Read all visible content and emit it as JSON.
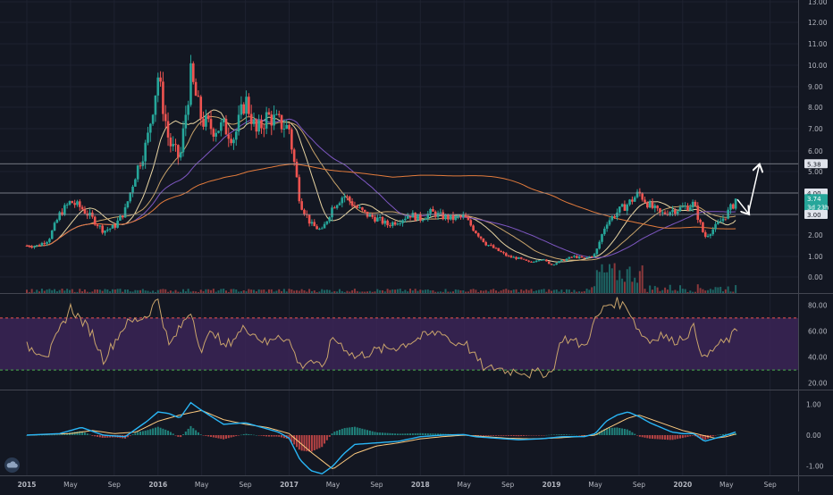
{
  "colors": {
    "background": "#131722",
    "grid": "#1e2230",
    "pane_border": "#434651",
    "axis_text": "#b2b5be",
    "up": "#26a69a",
    "down": "#ef5350",
    "ma_fast": "#e8d4a2",
    "ma_mid": "#c9a46b",
    "ma_slow": "#7e57c2",
    "ma_long": "#e27b3c",
    "rsi_line": "#c9a46b",
    "rsi_band": "#3b2456",
    "rsi_upper": "#ef5350",
    "rsi_lower": "#4caf50",
    "macd_line": "#29b6f6",
    "signal_line": "#ffcc80",
    "label_fill": "#e0e3eb",
    "label_text": "#131722",
    "price_label_fill": "#26a69a",
    "arrow": "#ffffff"
  },
  "icons": {
    "logo": "tradingview-cloud-icon"
  },
  "chart_data": [
    {
      "type": "candlestick",
      "name": "price",
      "x_ticks": [
        "2015",
        "May",
        "Sep",
        "2016",
        "May",
        "Sep",
        "2017",
        "May",
        "Sep",
        "2018",
        "May",
        "Sep",
        "2019",
        "May",
        "Sep",
        "2020",
        "May",
        "Sep"
      ],
      "x_tick_dates": [
        "2015-01",
        "2015-05",
        "2015-09",
        "2016-01",
        "2016-05",
        "2016-09",
        "2017-01",
        "2017-05",
        "2017-09",
        "2018-01",
        "2018-05",
        "2018-09",
        "2019-01",
        "2019-05",
        "2019-09",
        "2020-01",
        "2020-05",
        "2020-09"
      ],
      "bold_ticks": [
        "2015",
        "2016",
        "2017",
        "2018",
        "2019",
        "2020"
      ],
      "y_ticks": [
        "0.00",
        "1.00",
        "2.00",
        "3.00",
        "4.00",
        "5.00",
        "6.00",
        "7.00",
        "8.00",
        "9.00",
        "10.00",
        "11.00",
        "12.00",
        "13.00"
      ],
      "y_scale": "log",
      "ylim": [
        0,
        13
      ],
      "horizontal_levels": [
        3.0,
        4.0,
        5.38
      ],
      "price_labels": [
        {
          "value": 5.38,
          "text": "5.38",
          "style": "light"
        },
        {
          "value": 4.0,
          "text": "4.00",
          "style": "light"
        },
        {
          "value": 3.74,
          "text": "3.74",
          "style": "accent"
        },
        {
          "value": 3.35,
          "text": "3d 23h",
          "style": "accent"
        },
        {
          "value": 3.0,
          "text": "3.00",
          "style": "light"
        }
      ],
      "close_path": [
        [
          "2015-01",
          1.5
        ],
        [
          "2015-02",
          1.5
        ],
        [
          "2015-03",
          1.8
        ],
        [
          "2015-04",
          3.0
        ],
        [
          "2015-05",
          3.6
        ],
        [
          "2015-06",
          3.3
        ],
        [
          "2015-07",
          2.8
        ],
        [
          "2015-08",
          2.2
        ],
        [
          "2015-09",
          2.4
        ],
        [
          "2015-10",
          3.2
        ],
        [
          "2015-11",
          5.0
        ],
        [
          "2015-12",
          6.4
        ],
        [
          "2016-01",
          9.5
        ],
        [
          "2016-02",
          6.4
        ],
        [
          "2016-03",
          5.6
        ],
        [
          "2016-04",
          9.5
        ],
        [
          "2016-05",
          7.4
        ],
        [
          "2016-06",
          7.0
        ],
        [
          "2016-07",
          7.1
        ],
        [
          "2016-08",
          6.6
        ],
        [
          "2016-09",
          8.4
        ],
        [
          "2016-10",
          6.8
        ],
        [
          "2016-11",
          7.6
        ],
        [
          "2016-12",
          7.3
        ],
        [
          "2017-01",
          7.0
        ],
        [
          "2017-02",
          3.6
        ],
        [
          "2017-03",
          2.5
        ],
        [
          "2017-04",
          2.2
        ],
        [
          "2017-05",
          3.4
        ],
        [
          "2017-06",
          3.9
        ],
        [
          "2017-07",
          3.4
        ],
        [
          "2017-08",
          3.0
        ],
        [
          "2017-09",
          2.8
        ],
        [
          "2017-10",
          2.5
        ],
        [
          "2017-11",
          2.7
        ],
        [
          "2017-12",
          3.0
        ],
        [
          "2018-01",
          2.8
        ],
        [
          "2018-02",
          3.1
        ],
        [
          "2018-03",
          2.9
        ],
        [
          "2018-04",
          2.8
        ],
        [
          "2018-05",
          2.9
        ],
        [
          "2018-06",
          2.2
        ],
        [
          "2018-07",
          1.6
        ],
        [
          "2018-08",
          1.3
        ],
        [
          "2018-09",
          1.0
        ],
        [
          "2018-10",
          0.9
        ],
        [
          "2018-11",
          0.7
        ],
        [
          "2018-12",
          0.9
        ],
        [
          "2019-01",
          0.6
        ],
        [
          "2019-02",
          0.8
        ],
        [
          "2019-03",
          1.0
        ],
        [
          "2019-04",
          0.9
        ],
        [
          "2019-05",
          1.1
        ],
        [
          "2019-06",
          2.6
        ],
        [
          "2019-07",
          3.1
        ],
        [
          "2019-08",
          3.5
        ],
        [
          "2019-09",
          4.0
        ],
        [
          "2019-10",
          3.4
        ],
        [
          "2019-11",
          3.0
        ],
        [
          "2019-12",
          3.2
        ],
        [
          "2020-01",
          3.3
        ],
        [
          "2020-02",
          3.5
        ],
        [
          "2020-03",
          1.9
        ],
        [
          "2020-04",
          2.4
        ],
        [
          "2020-05",
          3.0
        ],
        [
          "2020-06",
          3.74
        ]
      ],
      "moving_averages": [
        {
          "color_key": "ma_fast",
          "period": 3
        },
        {
          "color_key": "ma_mid",
          "period": 6
        },
        {
          "color_key": "ma_slow",
          "period": 10
        },
        {
          "color_key": "ma_long",
          "period": 34
        }
      ],
      "annotation_arrows": [
        {
          "from": [
            "2020-06",
            3.7
          ],
          "to": [
            "2020-07",
            3.05
          ]
        },
        {
          "from": [
            "2020-07",
            3.05
          ],
          "to": [
            "2020-08",
            5.3
          ]
        }
      ]
    },
    {
      "type": "line",
      "name": "RSI",
      "y_ticks": [
        "20.00",
        "40.00",
        "60.00",
        "80.00"
      ],
      "ylim": [
        15,
        85
      ],
      "bands": [
        30,
        70
      ],
      "series": [
        [
          "2015-01",
          48
        ],
        [
          "2015-03",
          42
        ],
        [
          "2015-05",
          78
        ],
        [
          "2015-07",
          58
        ],
        [
          "2015-08",
          38
        ],
        [
          "2015-10",
          65
        ],
        [
          "2015-12",
          72
        ],
        [
          "2016-01",
          85
        ],
        [
          "2016-02",
          48
        ],
        [
          "2016-04",
          76
        ],
        [
          "2016-05",
          44
        ],
        [
          "2016-06",
          62
        ],
        [
          "2016-07",
          47
        ],
        [
          "2016-09",
          63
        ],
        [
          "2016-11",
          50
        ],
        [
          "2016-12",
          58
        ],
        [
          "2017-01",
          52
        ],
        [
          "2017-02",
          33
        ],
        [
          "2017-03",
          38
        ],
        [
          "2017-04",
          30
        ],
        [
          "2017-05",
          55
        ],
        [
          "2017-06",
          48
        ],
        [
          "2017-07",
          40
        ],
        [
          "2017-09",
          45
        ],
        [
          "2017-11",
          48
        ],
        [
          "2018-01",
          55
        ],
        [
          "2018-03",
          60
        ],
        [
          "2018-04",
          50
        ],
        [
          "2018-05",
          52
        ],
        [
          "2018-06",
          40
        ],
        [
          "2018-07",
          30
        ],
        [
          "2018-08",
          32
        ],
        [
          "2018-09",
          29
        ],
        [
          "2018-10",
          30
        ],
        [
          "2018-11",
          27
        ],
        [
          "2018-12",
          28
        ],
        [
          "2019-01",
          28
        ],
        [
          "2019-02",
          55
        ],
        [
          "2019-03",
          52
        ],
        [
          "2019-04",
          48
        ],
        [
          "2019-05",
          68
        ],
        [
          "2019-06",
          80
        ],
        [
          "2019-07",
          82
        ],
        [
          "2019-08",
          78
        ],
        [
          "2019-09",
          60
        ],
        [
          "2019-10",
          52
        ],
        [
          "2019-11",
          58
        ],
        [
          "2019-12",
          52
        ],
        [
          "2020-01",
          55
        ],
        [
          "2020-02",
          62
        ],
        [
          "2020-03",
          38
        ],
        [
          "2020-04",
          48
        ],
        [
          "2020-05",
          52
        ],
        [
          "2020-06",
          60
        ]
      ]
    },
    {
      "type": "line+histogram",
      "name": "MACD",
      "y_ticks": [
        "-1.00",
        "0.00",
        "1.00"
      ],
      "ylim": [
        -1.3,
        1.3
      ],
      "macd": [
        [
          "2015-01",
          0.0
        ],
        [
          "2015-04",
          0.05
        ],
        [
          "2015-06",
          0.25
        ],
        [
          "2015-08",
          0.0
        ],
        [
          "2015-10",
          -0.05
        ],
        [
          "2015-12",
          0.45
        ],
        [
          "2016-01",
          0.75
        ],
        [
          "2016-02",
          0.7
        ],
        [
          "2016-03",
          0.55
        ],
        [
          "2016-04",
          1.05
        ],
        [
          "2016-05",
          0.8
        ],
        [
          "2016-07",
          0.35
        ],
        [
          "2016-09",
          0.4
        ],
        [
          "2016-11",
          0.2
        ],
        [
          "2016-12",
          0.1
        ],
        [
          "2017-01",
          -0.1
        ],
        [
          "2017-02",
          -0.8
        ],
        [
          "2017-03",
          -1.15
        ],
        [
          "2017-04",
          -1.25
        ],
        [
          "2017-05",
          -1.0
        ],
        [
          "2017-06",
          -0.6
        ],
        [
          "2017-07",
          -0.3
        ],
        [
          "2017-09",
          -0.25
        ],
        [
          "2017-11",
          -0.2
        ],
        [
          "2018-01",
          -0.05
        ],
        [
          "2018-03",
          0.0
        ],
        [
          "2018-05",
          0.02
        ],
        [
          "2018-06",
          -0.05
        ],
        [
          "2018-08",
          -0.1
        ],
        [
          "2018-10",
          -0.15
        ],
        [
          "2018-12",
          -0.12
        ],
        [
          "2019-02",
          -0.05
        ],
        [
          "2019-04",
          -0.05
        ],
        [
          "2019-05",
          0.05
        ],
        [
          "2019-06",
          0.45
        ],
        [
          "2019-07",
          0.65
        ],
        [
          "2019-08",
          0.75
        ],
        [
          "2019-09",
          0.6
        ],
        [
          "2019-10",
          0.4
        ],
        [
          "2019-11",
          0.25
        ],
        [
          "2019-12",
          0.1
        ],
        [
          "2020-01",
          0.05
        ],
        [
          "2020-02",
          0.05
        ],
        [
          "2020-03",
          -0.2
        ],
        [
          "2020-04",
          -0.1
        ],
        [
          "2020-05",
          0.0
        ],
        [
          "2020-06",
          0.12
        ]
      ],
      "signal": [
        [
          "2015-01",
          0.0
        ],
        [
          "2015-05",
          0.05
        ],
        [
          "2015-07",
          0.15
        ],
        [
          "2015-09",
          0.05
        ],
        [
          "2015-11",
          0.1
        ],
        [
          "2016-01",
          0.45
        ],
        [
          "2016-03",
          0.65
        ],
        [
          "2016-05",
          0.8
        ],
        [
          "2016-07",
          0.5
        ],
        [
          "2016-09",
          0.35
        ],
        [
          "2016-11",
          0.25
        ],
        [
          "2017-01",
          0.05
        ],
        [
          "2017-03",
          -0.55
        ],
        [
          "2017-05",
          -1.1
        ],
        [
          "2017-07",
          -0.6
        ],
        [
          "2017-09",
          -0.35
        ],
        [
          "2017-11",
          -0.25
        ],
        [
          "2018-01",
          -0.12
        ],
        [
          "2018-03",
          -0.05
        ],
        [
          "2018-05",
          0.0
        ],
        [
          "2018-07",
          -0.05
        ],
        [
          "2018-09",
          -0.1
        ],
        [
          "2018-11",
          -0.12
        ],
        [
          "2019-01",
          -0.1
        ],
        [
          "2019-03",
          -0.06
        ],
        [
          "2019-05",
          0.0
        ],
        [
          "2019-06",
          0.2
        ],
        [
          "2019-08",
          0.55
        ],
        [
          "2019-09",
          0.65
        ],
        [
          "2019-11",
          0.4
        ],
        [
          "2020-01",
          0.15
        ],
        [
          "2020-03",
          -0.02
        ],
        [
          "2020-04",
          -0.1
        ],
        [
          "2020-05",
          -0.05
        ],
        [
          "2020-06",
          0.05
        ]
      ]
    }
  ]
}
